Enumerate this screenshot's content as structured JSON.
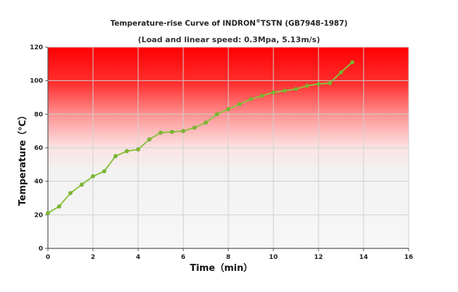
{
  "chart_data": {
    "type": "line",
    "title_main": "Temperature-rise Curve of INDRON",
    "title_mark": "®",
    "title_tail": "TSTN (GB7948-1987)",
    "subtitle": "(Load and linear speed: 0.3Mpa, 5.13m/s)",
    "xlabel": "Time（min）",
    "ylabel": "Temperature（℃）",
    "xlim": [
      0,
      16
    ],
    "ylim": [
      0,
      120
    ],
    "xticks": [
      0,
      2,
      4,
      6,
      8,
      10,
      12,
      14,
      16
    ],
    "yticks": [
      0,
      20,
      40,
      60,
      80,
      100,
      120
    ],
    "grid": true,
    "colors": {
      "line": "#8ac43f",
      "marker": "#7cb832",
      "gradient_top": "#ff0000",
      "grid": "#cfcfcf"
    },
    "series": [
      {
        "x": [
          0,
          0.5,
          1,
          1.5,
          2,
          2.5,
          3,
          3.5,
          4,
          4.5,
          5,
          5.5,
          6,
          6.5,
          7,
          7.5,
          8,
          8.5,
          9,
          9.5,
          10,
          10.5,
          11,
          11.5,
          12,
          12.5,
          13,
          13.5
        ],
        "y": [
          21,
          25,
          33,
          38,
          43,
          46,
          55,
          58,
          59,
          65,
          69,
          69.5,
          70,
          72,
          75,
          80,
          83,
          86,
          89,
          91,
          93,
          94,
          95,
          97,
          98,
          98.5,
          105,
          111
        ]
      }
    ]
  }
}
